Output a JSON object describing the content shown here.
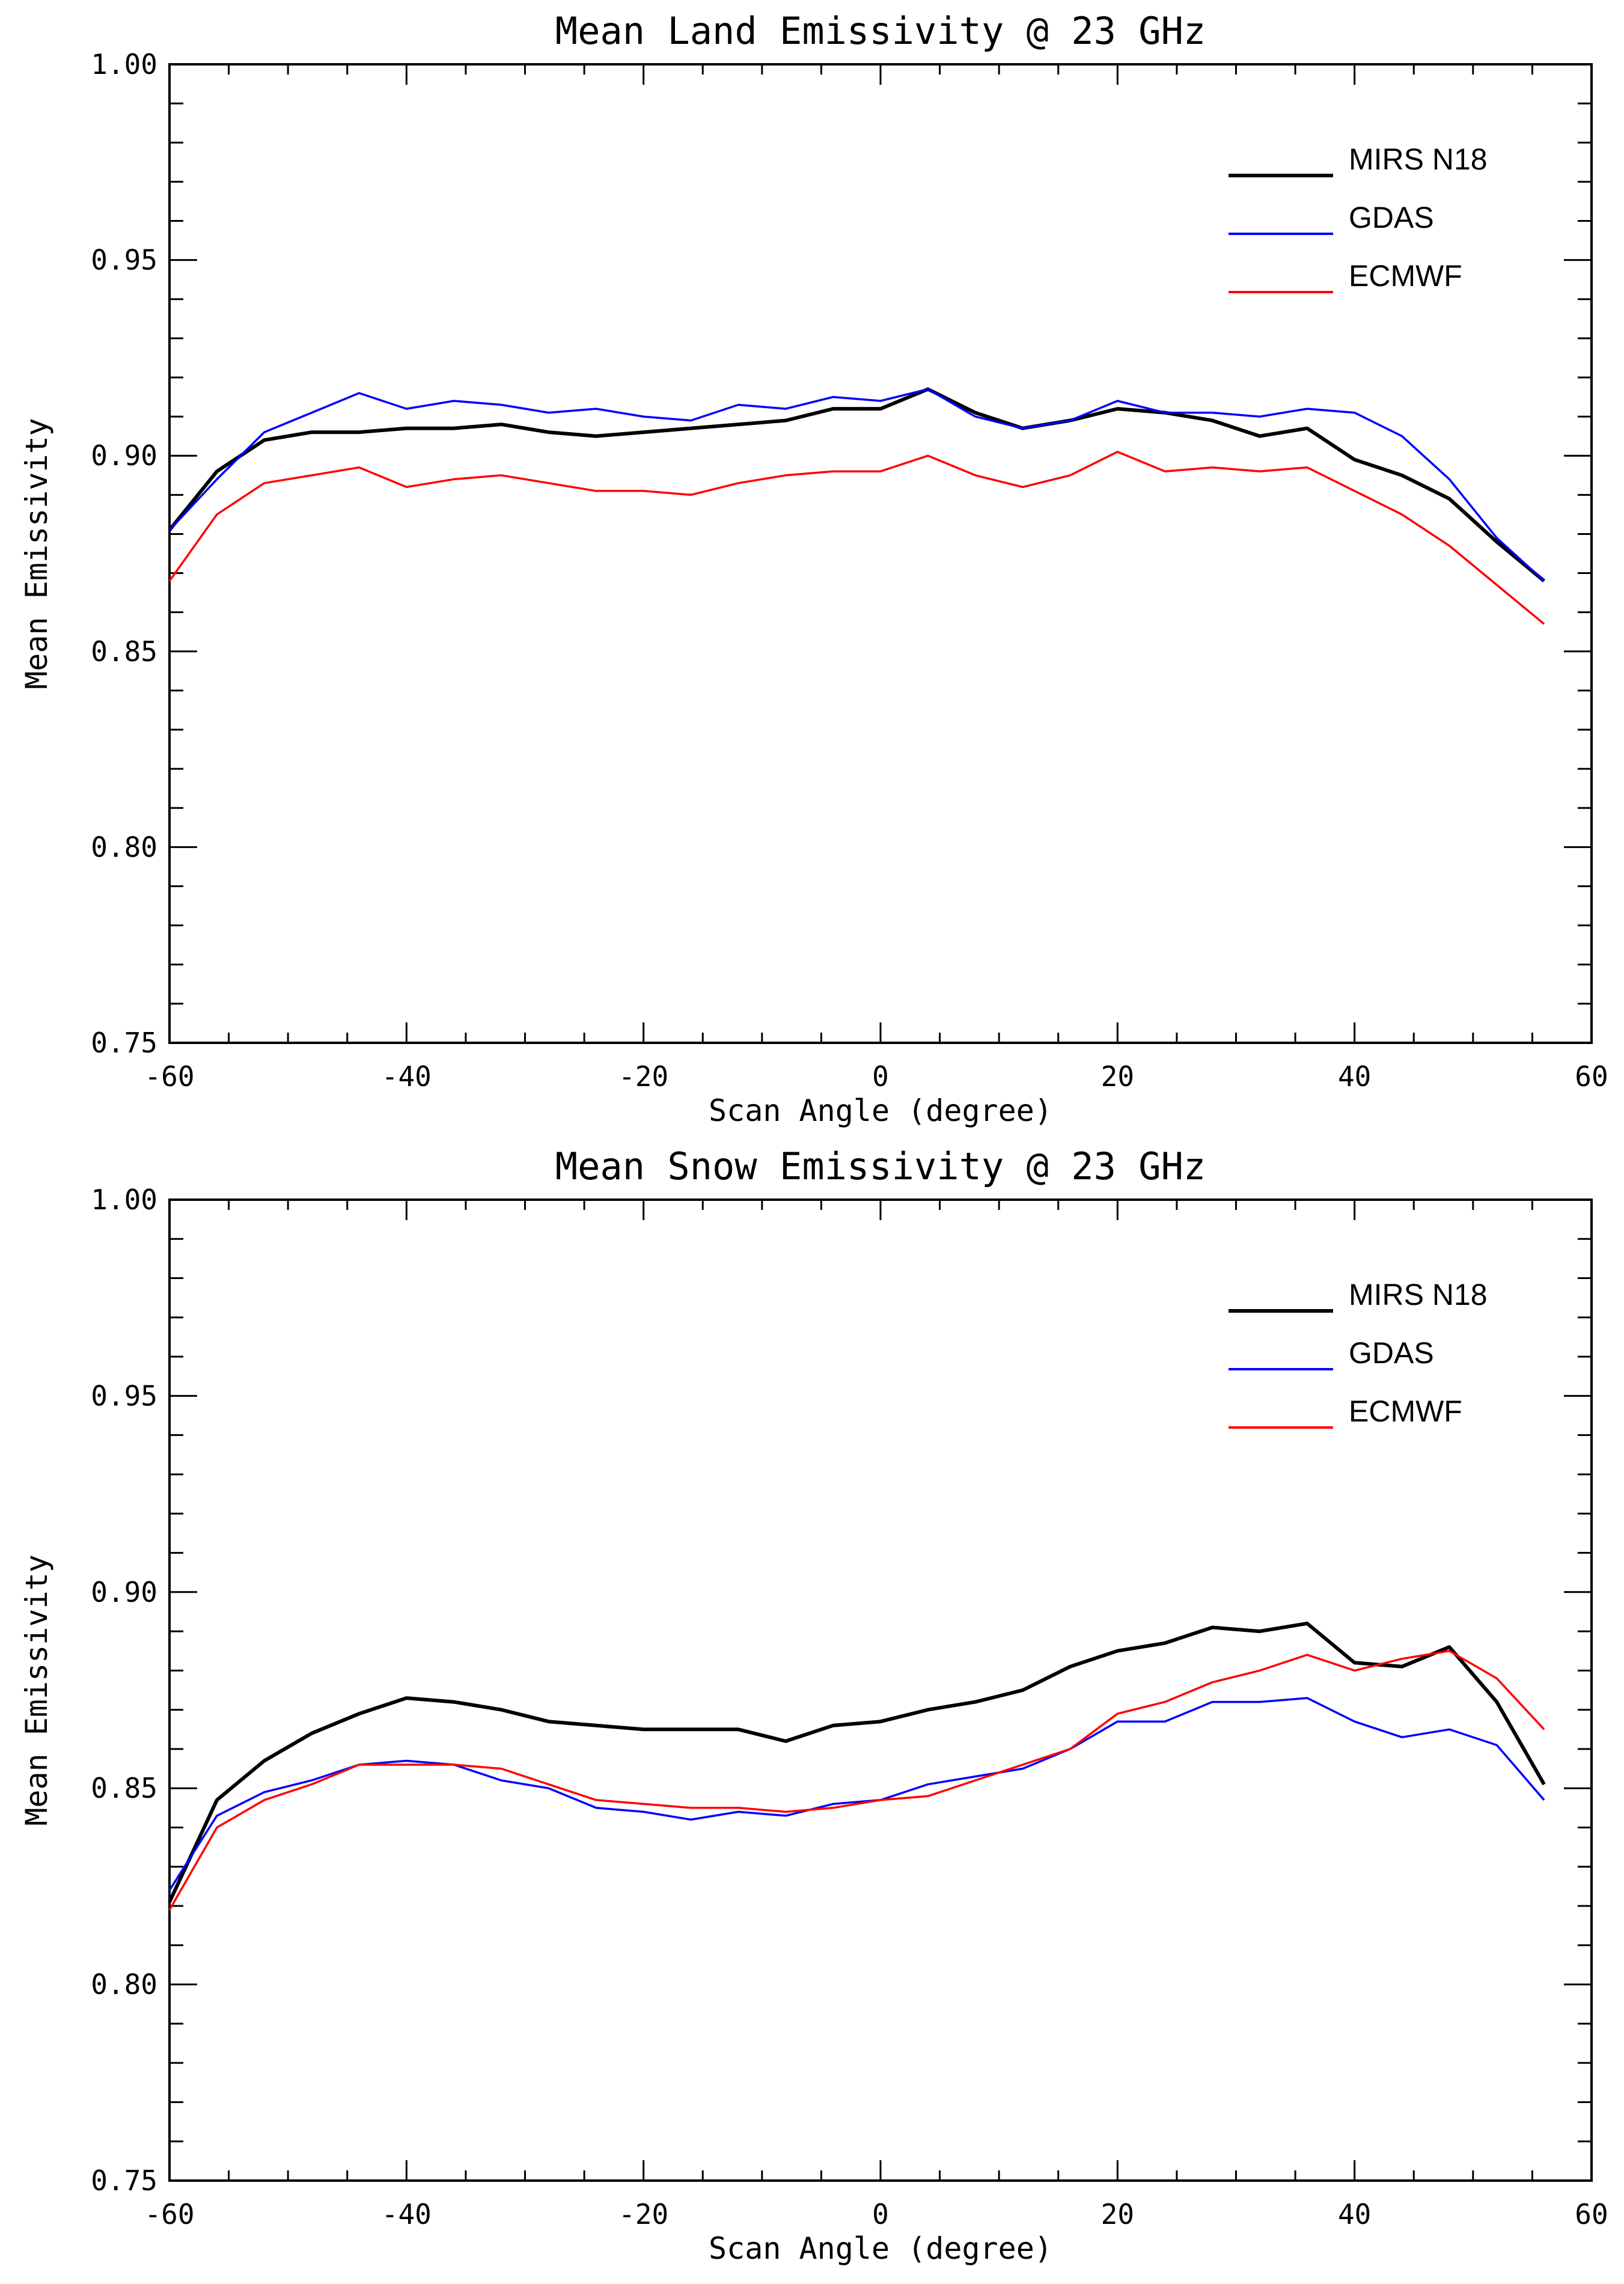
{
  "chart_data": [
    {
      "type": "line",
      "title": "Mean Land Emissivity @ 23 GHz",
      "xlabel": "Scan Angle (degree)",
      "ylabel": "Mean Emissivity",
      "xlim": [
        -60,
        60
      ],
      "ylim": [
        0.75,
        1.0
      ],
      "x_ticks": [
        "-60",
        "-40",
        "-20",
        "0",
        "20",
        "40",
        "60"
      ],
      "y_ticks": [
        "0.75",
        "0.80",
        "0.85",
        "0.90",
        "0.95",
        "1.00"
      ],
      "legend_position": "top-right",
      "x": [
        -60,
        -56,
        -52,
        -48,
        -44,
        -40,
        -36,
        -32,
        -28,
        -24,
        -20,
        -16,
        -12,
        -8,
        -4,
        0,
        4,
        8,
        12,
        16,
        20,
        24,
        28,
        32,
        36,
        40,
        44,
        48,
        52,
        56
      ],
      "series": [
        {
          "name": "MIRS N18",
          "color": "#000000",
          "values": [
            0.881,
            0.896,
            0.904,
            0.906,
            0.906,
            0.907,
            0.907,
            0.908,
            0.906,
            0.905,
            0.906,
            0.907,
            0.908,
            0.909,
            0.912,
            0.912,
            0.917,
            0.911,
            0.907,
            0.909,
            0.912,
            0.911,
            0.909,
            0.905,
            0.907,
            0.899,
            0.895,
            0.889,
            0.878,
            0.868
          ]
        },
        {
          "name": "GDAS",
          "color": "#0000ff",
          "values": [
            0.881,
            0.894,
            0.906,
            0.911,
            0.916,
            0.912,
            0.914,
            0.913,
            0.911,
            0.912,
            0.91,
            0.909,
            0.913,
            0.912,
            0.915,
            0.914,
            0.917,
            0.91,
            0.907,
            0.909,
            0.914,
            0.911,
            0.911,
            0.91,
            0.912,
            0.911,
            0.905,
            0.894,
            0.879,
            0.868
          ]
        },
        {
          "name": "ECMWF",
          "color": "#ff0000",
          "values": [
            0.868,
            0.885,
            0.893,
            0.895,
            0.897,
            0.892,
            0.894,
            0.895,
            0.893,
            0.891,
            0.891,
            0.89,
            0.893,
            0.895,
            0.896,
            0.896,
            0.9,
            0.895,
            0.892,
            0.895,
            0.901,
            0.896,
            0.897,
            0.896,
            0.897,
            0.891,
            0.885,
            0.877,
            0.867,
            0.857
          ]
        }
      ]
    },
    {
      "type": "line",
      "title": "Mean Snow Emissivity @ 23 GHz",
      "xlabel": "Scan Angle (degree)",
      "ylabel": "Mean Emissivity",
      "xlim": [
        -60,
        60
      ],
      "ylim": [
        0.75,
        1.0
      ],
      "x_ticks": [
        "-60",
        "-40",
        "-20",
        "0",
        "20",
        "40",
        "60"
      ],
      "y_ticks": [
        "0.75",
        "0.80",
        "0.85",
        "0.90",
        "0.95",
        "1.00"
      ],
      "legend_position": "top-right",
      "x": [
        -60,
        -56,
        -52,
        -48,
        -44,
        -40,
        -36,
        -32,
        -28,
        -24,
        -20,
        -16,
        -12,
        -8,
        -4,
        0,
        4,
        8,
        12,
        16,
        20,
        24,
        28,
        32,
        36,
        40,
        44,
        48,
        52,
        56
      ],
      "series": [
        {
          "name": "MIRS N18",
          "color": "#000000",
          "values": [
            0.821,
            0.847,
            0.857,
            0.864,
            0.869,
            0.873,
            0.872,
            0.87,
            0.867,
            0.866,
            0.865,
            0.865,
            0.865,
            0.862,
            0.866,
            0.867,
            0.87,
            0.872,
            0.875,
            0.881,
            0.885,
            0.887,
            0.891,
            0.89,
            0.892,
            0.882,
            0.881,
            0.886,
            0.872,
            0.851
          ]
        },
        {
          "name": "GDAS",
          "color": "#0000ff",
          "values": [
            0.824,
            0.843,
            0.849,
            0.852,
            0.856,
            0.857,
            0.856,
            0.852,
            0.85,
            0.845,
            0.844,
            0.842,
            0.844,
            0.843,
            0.846,
            0.847,
            0.851,
            0.853,
            0.855,
            0.86,
            0.867,
            0.867,
            0.872,
            0.872,
            0.873,
            0.867,
            0.863,
            0.865,
            0.861,
            0.847
          ]
        },
        {
          "name": "ECMWF",
          "color": "#ff0000",
          "values": [
            0.819,
            0.84,
            0.847,
            0.851,
            0.856,
            0.856,
            0.856,
            0.855,
            0.851,
            0.847,
            0.846,
            0.845,
            0.845,
            0.844,
            0.845,
            0.847,
            0.848,
            0.852,
            0.856,
            0.86,
            0.869,
            0.872,
            0.877,
            0.88,
            0.884,
            0.88,
            0.883,
            0.885,
            0.878,
            0.865
          ]
        }
      ]
    }
  ]
}
